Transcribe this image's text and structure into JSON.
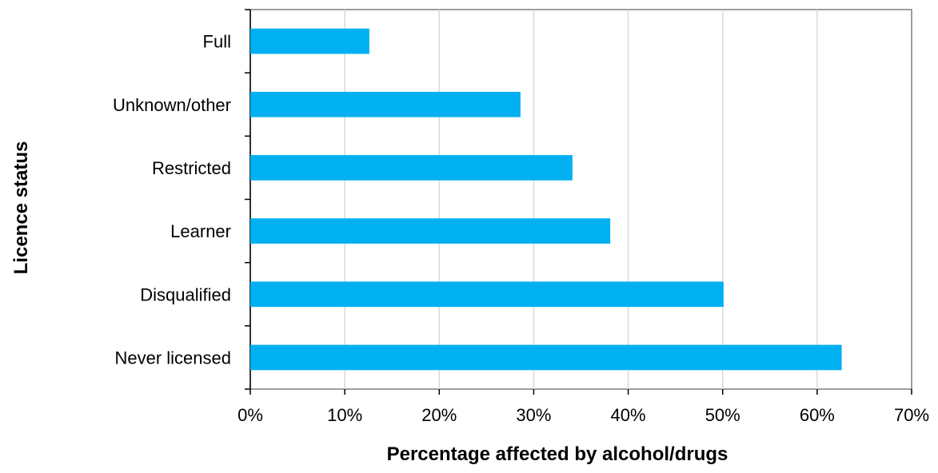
{
  "chart_data": {
    "type": "bar",
    "orientation": "horizontal",
    "categories": [
      "Full",
      "Unknown/other",
      "Restricted",
      "Learner",
      "Disqualified",
      "Never licensed"
    ],
    "values": [
      12.6,
      28.6,
      34.1,
      38.1,
      50.1,
      62.6
    ],
    "value_unit": "%",
    "xlabel": "Percentage affected by alcohol/drugs",
    "ylabel": "Licence status",
    "xlim": [
      0,
      70
    ],
    "x_ticks": [
      0,
      10,
      20,
      30,
      40,
      50,
      60,
      70
    ],
    "x_tick_labels": [
      "0%",
      "10%",
      "20%",
      "30%",
      "40%",
      "50%",
      "60%",
      "70%"
    ],
    "grid": "vertical",
    "legend": "none",
    "colors": {
      "bar": "#00B0F0",
      "grid": "#D9D9D9",
      "axis": "#7F7F7F"
    }
  }
}
